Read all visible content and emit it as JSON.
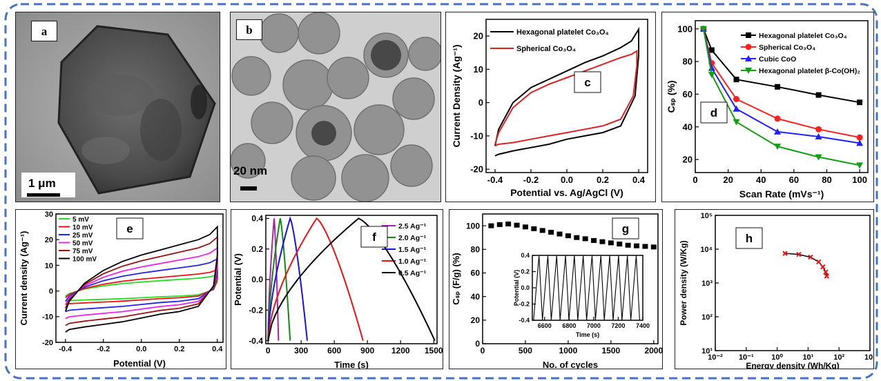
{
  "frame_color": "#4472c4",
  "panels": {
    "a": {
      "label": "a",
      "scale_text": "1 μm"
    },
    "b": {
      "label": "b",
      "scale_text": "20 nm"
    }
  },
  "chart_data": [
    {
      "id": "c",
      "type": "line",
      "label": "c",
      "xlabel": "Potential vs. Ag/AgCl (V)",
      "ylabel": "Current Density (Ag⁻¹)",
      "xlim": [
        -0.45,
        0.45
      ],
      "ylim": [
        -21,
        25
      ],
      "xticks": [
        "-0.4",
        "-0.2",
        "0.0",
        "0.2",
        "0.4"
      ],
      "xtick_values": [
        -0.4,
        -0.2,
        0.0,
        0.2,
        0.4
      ],
      "yticks": [
        "-20",
        "-10",
        "0",
        "10",
        "20"
      ],
      "ytick_values": [
        -20,
        -10,
        0,
        10,
        20
      ],
      "legend": "top-left",
      "series": [
        {
          "name": "Hexagonal platelet Co₃O₄",
          "color": "#000000",
          "x": [
            -0.4,
            -0.38,
            -0.3,
            -0.2,
            -0.1,
            0.0,
            0.1,
            0.2,
            0.3,
            0.36,
            0.4,
            0.4,
            0.38,
            0.3,
            0.2,
            0.1,
            0.0,
            -0.1,
            -0.2,
            -0.3,
            -0.38,
            -0.4
          ],
          "y": [
            -13,
            -8,
            0,
            4.5,
            7,
            9.5,
            12,
            14,
            16.5,
            18.5,
            22,
            14,
            2,
            -7,
            -9,
            -10,
            -11,
            -12.5,
            -13.5,
            -14.5,
            -15.5,
            -16
          ]
        },
        {
          "name": "Spherical Co₃O₄",
          "color": "#e02020",
          "x": [
            -0.4,
            -0.38,
            -0.3,
            -0.2,
            -0.1,
            0.0,
            0.1,
            0.2,
            0.3,
            0.36,
            0.39,
            0.39,
            0.37,
            0.3,
            0.2,
            0.1,
            0.0,
            -0.1,
            -0.2,
            -0.3,
            -0.38,
            -0.4
          ],
          "y": [
            -12.5,
            -9,
            -1.5,
            3,
            5.5,
            7.5,
            9.5,
            11.5,
            13.5,
            14.5,
            15.5,
            11,
            2,
            -5,
            -7,
            -8,
            -9,
            -10,
            -11,
            -12,
            -12.5,
            -13
          ]
        }
      ]
    },
    {
      "id": "d",
      "type": "line",
      "label": "d",
      "xlabel": "Scan Rate (mVs⁻¹)",
      "ylabel": "Cₛₚ (%)",
      "xlim": [
        0,
        105
      ],
      "ylim": [
        12,
        105
      ],
      "xticks": [
        "0",
        "20",
        "40",
        "60",
        "80",
        "100"
      ],
      "xtick_values": [
        0,
        20,
        40,
        60,
        80,
        100
      ],
      "yticks": [
        "20",
        "40",
        "60",
        "80",
        "100"
      ],
      "ytick_values": [
        20,
        40,
        60,
        80,
        100
      ],
      "legend": "top-right",
      "x": [
        5,
        10,
        25,
        50,
        75,
        100
      ],
      "series": [
        {
          "name": "Hexagonal platelet Co₃O₄",
          "color": "#000000",
          "marker": "square",
          "values": [
            100,
            87,
            69,
            64.5,
            59.5,
            55
          ]
        },
        {
          "name": "Spherical Co₃O₄",
          "color": "#ff2020",
          "marker": "circle",
          "values": [
            100,
            79,
            57,
            45,
            38.5,
            33.5
          ]
        },
        {
          "name": "Cubic CoO",
          "color": "#2020ff",
          "marker": "triangle-up",
          "values": [
            100,
            76,
            51,
            37,
            34,
            30
          ]
        },
        {
          "name": "Hexagonal platelet β-Co(OH)₂",
          "color": "#10a010",
          "marker": "triangle-down",
          "values": [
            100,
            72,
            43,
            28,
            21.5,
            16.5
          ]
        }
      ]
    },
    {
      "id": "e",
      "type": "line",
      "label": "e",
      "xlabel": "Potential  (V)",
      "ylabel": "Current density (Ag⁻¹)",
      "xlim": [
        -0.45,
        0.43
      ],
      "ylim": [
        -20,
        30
      ],
      "xticks": [
        "-0.4",
        "-0.2",
        "0.0",
        "0.2",
        "0.4"
      ],
      "xtick_values": [
        -0.4,
        -0.2,
        0.0,
        0.2,
        0.4
      ],
      "yticks": [
        "-20",
        "-10",
        "0",
        "10",
        "20",
        "30"
      ],
      "ytick_values": [
        -20,
        -10,
        0,
        10,
        20,
        30
      ],
      "legend": "top-left",
      "series": [
        {
          "name": "5 mV",
          "color": "#22dd22",
          "scale": 0.25
        },
        {
          "name": "10 mV",
          "color": "#ee1111",
          "scale": 0.33
        },
        {
          "name": "25 mV",
          "color": "#2222ee",
          "scale": 0.5
        },
        {
          "name": "50 mV",
          "color": "#ee22ee",
          "scale": 0.67
        },
        {
          "name": "75 mV",
          "color": "#991111",
          "scale": 0.84
        },
        {
          "name": "100 mV",
          "color": "#000000",
          "scale": 1.0
        }
      ],
      "base_curve": {
        "x": [
          -0.4,
          -0.38,
          -0.3,
          -0.2,
          -0.1,
          0.0,
          0.1,
          0.2,
          0.3,
          0.36,
          0.4,
          0.4,
          0.38,
          0.3,
          0.2,
          0.1,
          0.0,
          -0.1,
          -0.2,
          -0.3,
          -0.38,
          -0.4
        ],
        "y": [
          -8,
          -4,
          3,
          8,
          11.5,
          14,
          16,
          18,
          20,
          22,
          25,
          14,
          2,
          -6,
          -8,
          -9,
          -10.5,
          -12,
          -13,
          -14,
          -15,
          -16
        ]
      }
    },
    {
      "id": "f",
      "type": "line",
      "label": "f",
      "xlabel": "Time (s)",
      "ylabel": "Potential (V)",
      "xlim": [
        -20,
        1530
      ],
      "ylim": [
        -0.42,
        0.42
      ],
      "xticks": [
        "0",
        "300",
        "600",
        "900",
        "1200",
        "1500"
      ],
      "xtick_values": [
        0,
        300,
        600,
        900,
        1200,
        1500
      ],
      "yticks": [
        "-0.4",
        "-0.2",
        "0.0",
        "0.2",
        "0.4"
      ],
      "ytick_values": [
        -0.4,
        -0.2,
        0.0,
        0.2,
        0.4
      ],
      "legend": "top-right",
      "series": [
        {
          "name": "2.5 Ag⁻¹",
          "color": "#aa22aa",
          "charge_end": 55,
          "discharge_end": 95
        },
        {
          "name": "2.0 Ag⁻¹",
          "color": "#118811",
          "charge_end": 110,
          "discharge_end": 200
        },
        {
          "name": "1.5 Ag⁻¹",
          "color": "#1111ee",
          "charge_end": 200,
          "discharge_end": 355
        },
        {
          "name": "1.0 Ag⁻¹",
          "color": "#ee1111",
          "charge_end": 440,
          "discharge_end": 860
        },
        {
          "name": "0.5 Ag⁻¹",
          "color": "#000000",
          "charge_end": 820,
          "discharge_end": 1510
        }
      ]
    },
    {
      "id": "g",
      "type": "scatter",
      "label": "g",
      "xlabel": "No. of cycles",
      "ylabel": "Cₛₚ (F/g) (%)",
      "xlim": [
        0,
        2050
      ],
      "ylim": [
        0,
        110
      ],
      "xticks": [
        "0",
        "500",
        "1000",
        "1500",
        "2000"
      ],
      "xtick_values": [
        0,
        500,
        1000,
        1500,
        2000
      ],
      "yticks": [
        "0",
        "20",
        "40",
        "60",
        "80",
        "100"
      ],
      "ytick_values": [
        0,
        20,
        40,
        60,
        80,
        100
      ],
      "series": [
        {
          "name": "",
          "color": "#000000",
          "x": [
            100,
            200,
            300,
            400,
            500,
            600,
            700,
            800,
            900,
            1000,
            1100,
            1200,
            1300,
            1400,
            1500,
            1600,
            1700,
            1800,
            1900,
            2000
          ],
          "y": [
            100,
            101,
            101.5,
            100.5,
            99,
            97.5,
            96,
            94.5,
            93,
            91.5,
            90,
            89,
            87.5,
            86.5,
            85.5,
            84.5,
            83.5,
            83,
            82.5,
            82
          ]
        }
      ],
      "inset": {
        "xlabel": "Time (s)",
        "ylabel": "Potential (V)",
        "xlim": [
          6500,
          7400
        ],
        "ylim": [
          -0.4,
          0.4
        ],
        "xticks": [
          "6600",
          "6800",
          "7000",
          "7200",
          "7400"
        ],
        "xtick_values": [
          6600,
          6800,
          7000,
          7200,
          7400
        ],
        "yticks": [
          "-0.4",
          "-0.2",
          "0.0",
          "0.2",
          "0.4"
        ],
        "ytick_values": [
          -0.4,
          -0.2,
          0.0,
          0.2,
          0.4
        ],
        "cycle_period": 72,
        "cycles": 12
      }
    },
    {
      "id": "h",
      "type": "line",
      "label": "h",
      "xlabel": "Energy density (Wh/Kg)",
      "ylabel": "Power density (W/Kg)",
      "xscale": "log",
      "yscale": "log",
      "xlim": [
        0.01,
        1000
      ],
      "ylim": [
        10,
        100000
      ],
      "xticks": [
        "10⁻²",
        "10⁻¹",
        "10⁰",
        "10¹",
        "10²",
        "10³"
      ],
      "xtick_values": [
        0.01,
        0.1,
        1,
        10,
        100,
        1000
      ],
      "yticks": [
        "10¹",
        "10²",
        "10³",
        "10⁴",
        "10⁵"
      ],
      "ytick_values": [
        10,
        100,
        1000,
        10000,
        100000
      ],
      "series": [
        {
          "name": "",
          "color": "#ee1111",
          "x": [
            1.8,
            5,
            12,
            22,
            30,
            37,
            40
          ],
          "y": [
            7500,
            7000,
            5800,
            4200,
            3000,
            2100,
            1600
          ]
        }
      ]
    }
  ]
}
